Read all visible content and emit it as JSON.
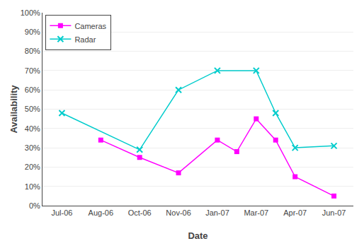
{
  "chart_data": {
    "type": "line",
    "xlabel": "Date",
    "ylabel": "Availability",
    "series": [
      {
        "name": "Cameras",
        "color": "#FF00FF",
        "marker": "square",
        "x": [
          2,
          3,
          4,
          5,
          5.5,
          6,
          6.5,
          7,
          8
        ],
        "values": [
          0.34,
          0.25,
          0.17,
          0.34,
          0.28,
          0.45,
          0.34,
          0.15,
          0.05
        ]
      },
      {
        "name": "Radar",
        "color": "#00CCCC",
        "marker": "x",
        "x": [
          1,
          3,
          4,
          5,
          6,
          6.5,
          7,
          8
        ],
        "values": [
          0.48,
          0.29,
          0.6,
          0.7,
          0.7,
          0.48,
          0.3,
          0.31
        ]
      }
    ],
    "xlim": [
      0.5,
      8.5
    ],
    "xticks": [
      {
        "value": 1,
        "label": "Jul-06"
      },
      {
        "value": 2,
        "label": "Aug-06"
      },
      {
        "value": 3,
        "label": "Oct-06"
      },
      {
        "value": 4,
        "label": "Nov-06"
      },
      {
        "value": 5,
        "label": "Jan-07"
      },
      {
        "value": 6,
        "label": "Mar-07"
      },
      {
        "value": 7,
        "label": "Apr-07"
      },
      {
        "value": 8,
        "label": "Jun-07"
      }
    ],
    "ylim": [
      0,
      1.0
    ],
    "yticks": [
      {
        "value": 0.0,
        "label": "0%"
      },
      {
        "value": 0.1,
        "label": "10%"
      },
      {
        "value": 0.2,
        "label": "20%"
      },
      {
        "value": 0.3,
        "label": "30%"
      },
      {
        "value": 0.4,
        "label": "40%"
      },
      {
        "value": 0.5,
        "label": "50%"
      },
      {
        "value": 0.6,
        "label": "60%"
      },
      {
        "value": 0.7,
        "label": "70%"
      },
      {
        "value": 0.8,
        "label": "80%"
      },
      {
        "value": 0.9,
        "label": "90%"
      },
      {
        "value": 1.0,
        "label": "100%"
      }
    ],
    "grid": "y",
    "legend": "upper left"
  }
}
